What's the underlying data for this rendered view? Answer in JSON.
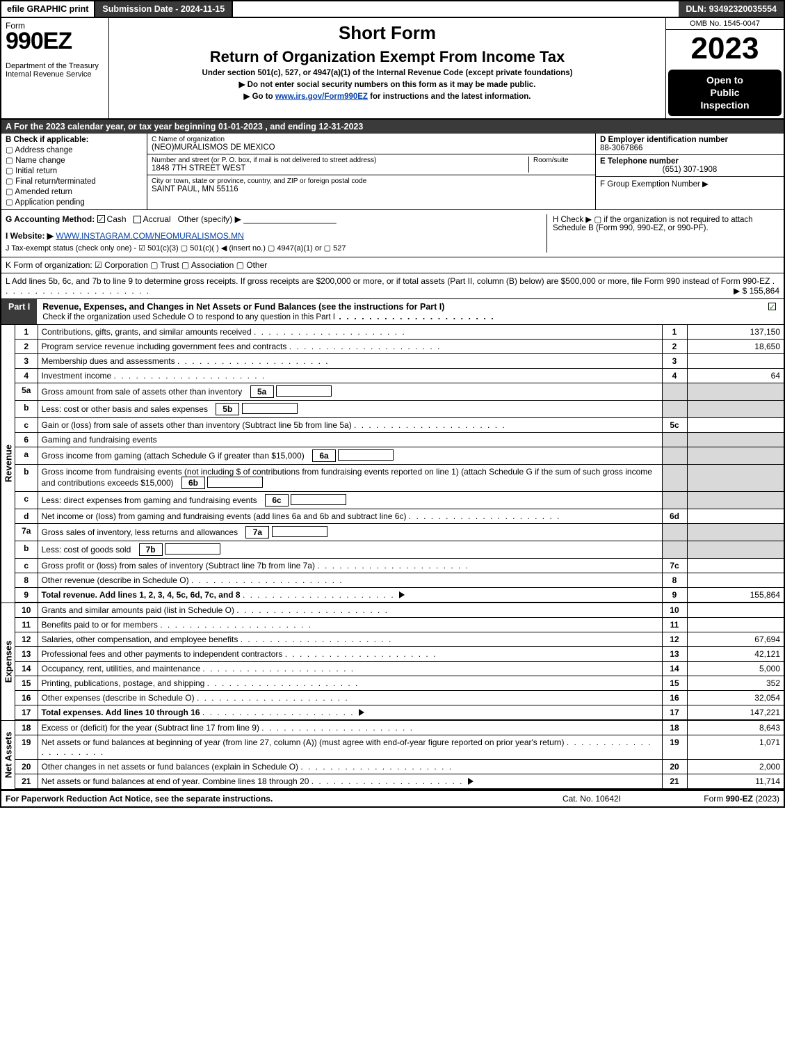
{
  "topbar": {
    "efile": "efile GRAPHIC print",
    "subdate_label": "Submission Date - 2024-11-15",
    "dln": "DLN: 93492320035554"
  },
  "header": {
    "form_word": "Form",
    "form_number": "990EZ",
    "dept": "Department of the Treasury\nInternal Revenue Service",
    "short_form": "Short Form",
    "title": "Return of Organization Exempt From Income Tax",
    "under": "Under section 501(c), 527, or 4947(a)(1) of the Internal Revenue Code (except private foundations)",
    "warn": "▶ Do not enter social security numbers on this form as it may be made public.",
    "goto_pre": "▶ Go to ",
    "goto_link": "www.irs.gov/Form990EZ",
    "goto_post": " for instructions and the latest information.",
    "omb": "OMB No. 1545-0047",
    "year": "2023",
    "inspection": "Open to\nPublic\nInspection"
  },
  "lineA": "A  For the 2023 calendar year, or tax year beginning 01-01-2023 , and ending 12-31-2023",
  "sectionB": {
    "title": "B  Check if applicable:",
    "items": [
      "Address change",
      "Name change",
      "Initial return",
      "Final return/terminated",
      "Amended return",
      "Application pending"
    ]
  },
  "sectionC": {
    "name_lbl": "C Name of organization",
    "name": "(NEO)MURALISMOS DE MEXICO",
    "street_lbl": "Number and street (or P. O. box, if mail is not delivered to street address)",
    "room_lbl": "Room/suite",
    "street": "1848 7TH STREET WEST",
    "city_lbl": "City or town, state or province, country, and ZIP or foreign postal code",
    "city": "SAINT PAUL, MN  55116"
  },
  "sectionD": {
    "ein_lbl": "D Employer identification number",
    "ein": "88-3067866",
    "tel_lbl": "E Telephone number",
    "tel": "(651) 307-1908",
    "grp_lbl": "F Group Exemption Number   ▶"
  },
  "rowG": {
    "label": "G Accounting Method:",
    "cash": "Cash",
    "accrual": "Accrual",
    "other": "Other (specify) ▶",
    "h_text": "H  Check ▶  ▢  if the organization is not required to attach Schedule B (Form 990, 990-EZ, or 990-PF)."
  },
  "rowI": {
    "label": "I Website: ▶",
    "value": "WWW.INSTAGRAM.COM/NEOMURALISMOS.MN"
  },
  "rowJ": "J Tax-exempt status (check only one) -  ☑ 501(c)(3)  ▢ 501(c)(  ) ◀ (insert no.)  ▢ 4947(a)(1) or  ▢ 527",
  "rowK": "K Form of organization:   ☑ Corporation   ▢ Trust   ▢ Association   ▢ Other",
  "rowL": {
    "text": "L Add lines 5b, 6c, and 7b to line 9 to determine gross receipts. If gross receipts are $200,000 or more, or if total assets (Part II, column (B) below) are $500,000 or more, file Form 990 instead of Form 990-EZ",
    "amount": "▶ $ 155,864"
  },
  "part1": {
    "tag": "Part I",
    "title": "Revenue, Expenses, and Changes in Net Assets or Fund Balances (see the instructions for Part I)",
    "check": "Check if the organization used Schedule O to respond to any question in this Part I"
  },
  "revenue": {
    "label": "Revenue",
    "rows": [
      {
        "n": "1",
        "desc": "Contributions, gifts, grants, and similar amounts received",
        "ln": "1",
        "amt": "137,150"
      },
      {
        "n": "2",
        "desc": "Program service revenue including government fees and contracts",
        "ln": "2",
        "amt": "18,650"
      },
      {
        "n": "3",
        "desc": "Membership dues and assessments",
        "ln": "3",
        "amt": ""
      },
      {
        "n": "4",
        "desc": "Investment income",
        "ln": "4",
        "amt": "64"
      },
      {
        "n": "5a",
        "desc": "Gross amount from sale of assets other than inventory",
        "sub": "5a",
        "shade": true
      },
      {
        "n": "b",
        "desc": "Less: cost or other basis and sales expenses",
        "sub": "5b",
        "shade": true
      },
      {
        "n": "c",
        "desc": "Gain or (loss) from sale of assets other than inventory (Subtract line 5b from line 5a)",
        "ln": "5c",
        "amt": ""
      },
      {
        "n": "6",
        "desc": "Gaming and fundraising events",
        "shade": true,
        "noln": true
      },
      {
        "n": "a",
        "desc": "Gross income from gaming (attach Schedule G if greater than $15,000)",
        "sub": "6a",
        "shade": true
      },
      {
        "n": "b",
        "desc": "Gross income from fundraising events (not including $                    of contributions from fundraising events reported on line 1) (attach Schedule G if the sum of such gross income and contributions exceeds $15,000)",
        "sub": "6b",
        "shade": true
      },
      {
        "n": "c",
        "desc": "Less: direct expenses from gaming and fundraising events",
        "sub": "6c",
        "shade": true
      },
      {
        "n": "d",
        "desc": "Net income or (loss) from gaming and fundraising events (add lines 6a and 6b and subtract line 6c)",
        "ln": "6d",
        "amt": ""
      },
      {
        "n": "7a",
        "desc": "Gross sales of inventory, less returns and allowances",
        "sub": "7a",
        "shade": true
      },
      {
        "n": "b",
        "desc": "Less: cost of goods sold",
        "sub": "7b",
        "shade": true
      },
      {
        "n": "c",
        "desc": "Gross profit or (loss) from sales of inventory (Subtract line 7b from line 7a)",
        "ln": "7c",
        "amt": ""
      },
      {
        "n": "8",
        "desc": "Other revenue (describe in Schedule O)",
        "ln": "8",
        "amt": ""
      },
      {
        "n": "9",
        "desc": "Total revenue. Add lines 1, 2, 3, 4, 5c, 6d, 7c, and 8",
        "ln": "9",
        "amt": "155,864",
        "bold": true,
        "arrow": true
      }
    ]
  },
  "expenses": {
    "label": "Expenses",
    "rows": [
      {
        "n": "10",
        "desc": "Grants and similar amounts paid (list in Schedule O)",
        "ln": "10",
        "amt": ""
      },
      {
        "n": "11",
        "desc": "Benefits paid to or for members",
        "ln": "11",
        "amt": ""
      },
      {
        "n": "12",
        "desc": "Salaries, other compensation, and employee benefits",
        "ln": "12",
        "amt": "67,694"
      },
      {
        "n": "13",
        "desc": "Professional fees and other payments to independent contractors",
        "ln": "13",
        "amt": "42,121"
      },
      {
        "n": "14",
        "desc": "Occupancy, rent, utilities, and maintenance",
        "ln": "14",
        "amt": "5,000"
      },
      {
        "n": "15",
        "desc": "Printing, publications, postage, and shipping",
        "ln": "15",
        "amt": "352"
      },
      {
        "n": "16",
        "desc": "Other expenses (describe in Schedule O)",
        "ln": "16",
        "amt": "32,054"
      },
      {
        "n": "17",
        "desc": "Total expenses. Add lines 10 through 16",
        "ln": "17",
        "amt": "147,221",
        "bold": true,
        "arrow": true
      }
    ]
  },
  "netassets": {
    "label": "Net Assets",
    "rows": [
      {
        "n": "18",
        "desc": "Excess or (deficit) for the year (Subtract line 17 from line 9)",
        "ln": "18",
        "amt": "8,643"
      },
      {
        "n": "19",
        "desc": "Net assets or fund balances at beginning of year (from line 27, column (A)) (must agree with end-of-year figure reported on prior year's return)",
        "ln": "19",
        "amt": "1,071"
      },
      {
        "n": "20",
        "desc": "Other changes in net assets or fund balances (explain in Schedule O)",
        "ln": "20",
        "amt": "2,000"
      },
      {
        "n": "21",
        "desc": "Net assets or fund balances at end of year. Combine lines 18 through 20",
        "ln": "21",
        "amt": "11,714",
        "arrow": true
      }
    ]
  },
  "footer": {
    "left": "For Paperwork Reduction Act Notice, see the separate instructions.",
    "center": "Cat. No. 10642I",
    "right": "Form 990-EZ (2023)"
  }
}
